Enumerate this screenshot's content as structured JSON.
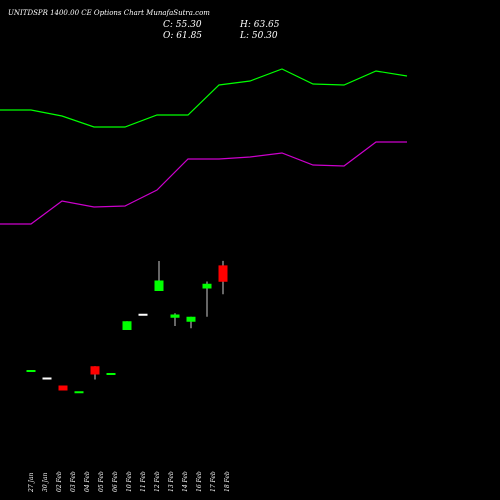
{
  "header": {
    "title": "UNITDSPR 1400.00  CE Options  Chart MunafaSutra.com",
    "close": "C: 55.30",
    "open": "O: 61.85",
    "high": "H: 63.65",
    "low": "L: 50.30"
  },
  "chart_data": {
    "type": "candlestick",
    "categories": [
      "27 Jan",
      "30 Jan",
      "02 Feb",
      "03 Feb",
      "04 Feb",
      "05 Feb",
      "06 Feb",
      "10 Feb",
      "11 Feb",
      "12 Feb",
      "13 Feb",
      "14 Feb",
      "17 Feb",
      "18 Feb"
    ],
    "candles": [
      {
        "open": 20.0,
        "high": 20.0,
        "low": 20.0,
        "close": 20.0,
        "color": "#00ff00"
      },
      {
        "open": 17.0,
        "high": 17.0,
        "low": 17.0,
        "close": 17.0,
        "color": "#ffffff"
      },
      {
        "open": 13.8,
        "high": 13.8,
        "low": 11.8,
        "close": 11.8,
        "color": "#ff0000"
      },
      {
        "open": 11.5,
        "high": 11.5,
        "low": 11.5,
        "close": 11.5,
        "color": "#00ff00"
      },
      {
        "open": 21.5,
        "high": 21.5,
        "low": 16.2,
        "close": 18.2,
        "color": "#ff0000"
      },
      {
        "open": 18.8,
        "high": 18.8,
        "low": 18.8,
        "close": 18.8,
        "color": "#00ff00"
      },
      {
        "open": 36.0,
        "high": 39.5,
        "low": 36.0,
        "close": 39.5,
        "color": "#00ff00"
      },
      {
        "open": 42.5,
        "high": 42.5,
        "low": 42.5,
        "close": 42.5,
        "color": "#ffffff"
      },
      {
        "open": 51.6,
        "high": 63.6,
        "low": 51.6,
        "close": 55.8,
        "color": "#00ff00"
      },
      {
        "open": 40.9,
        "high": 42.7,
        "low": 37.6,
        "close": 42.2,
        "color": "#00ff00"
      },
      {
        "open": 39.3,
        "high": 41.3,
        "low": 36.7,
        "close": 41.3,
        "color": "#00ff00"
      },
      {
        "open": 52.6,
        "high": 55.4,
        "low": 41.3,
        "close": 54.5,
        "color": "#00ff00"
      },
      {
        "open": 61.85,
        "high": 63.65,
        "low": 50.3,
        "close": 55.3,
        "color": "#ff0000"
      }
    ],
    "candle_categories": [
      "27 Jan",
      "30 Jan",
      "02 Feb",
      "03 Feb",
      "04 Feb",
      "05 Feb",
      "10 Feb",
      "11 Feb",
      "12 Feb",
      "13 Feb",
      "16 Feb",
      "17 Feb",
      "18 Feb"
    ],
    "series": [
      {
        "values": [
          150,
          150,
          144,
          133,
          133,
          145,
          145,
          175,
          179,
          191,
          176,
          175,
          189,
          184
        ],
        "color": "#00ff00"
      },
      {
        "values": [
          36,
          36,
          59,
          53,
          54,
          70,
          101,
          101,
          103,
          107,
          95,
          94,
          118,
          118
        ],
        "color": "#cc00cc"
      }
    ],
    "labels": [
      "27 Jan",
      "30 Jan",
      "02 Feb",
      "03 Feb",
      "04 Feb",
      "05 Feb",
      "06 Feb",
      "10 Feb",
      "11 Feb",
      "12 Feb",
      "13 Feb",
      "14 Feb",
      "16 Feb",
      "17 Feb",
      "18 Feb"
    ],
    "ylim": [
      0,
      200
    ],
    "grid": false,
    "background": "#000000"
  }
}
